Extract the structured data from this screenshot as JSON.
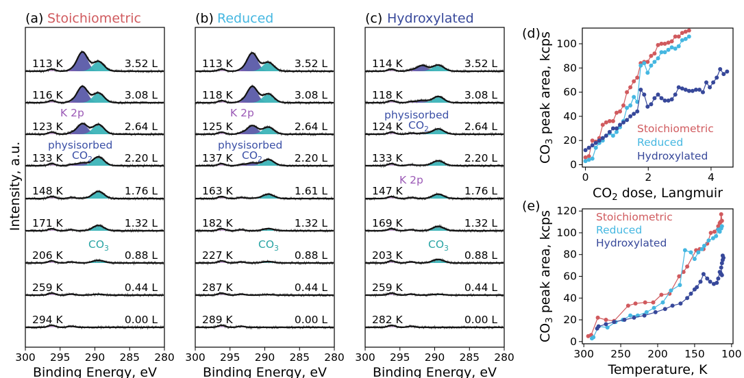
{
  "colors": {
    "stoich": "#d05a5e",
    "reduced": "#45b7e1",
    "hydrox": "#37489a",
    "co2_fill": "#5a5aa8",
    "co3_fill": "#3cb4b8",
    "k2p": "#9b59b6",
    "co2_text": "#3a4fa6",
    "co3_text": "#2aa5a5"
  },
  "shared": {
    "ylabel": "Intensity, a.u.",
    "xlabel": "Binding Energy, eV",
    "xticks": [
      "300",
      "295",
      "290",
      "285",
      "280"
    ],
    "co3_label_main": "CO",
    "co3_label_sub": "3",
    "co2_label_main": "CO",
    "co2_label_sub": "2",
    "k2p_label": "K 2p",
    "physisorbed_label": "physisorbed"
  },
  "panels": [
    {
      "letter": "(a)",
      "title": "Stoichiometric",
      "title_color": "#d05a5e",
      "rows": [
        {
          "temp": "113 K",
          "dose": "3.52 L",
          "co2": 1.0,
          "co3": 0.55
        },
        {
          "temp": "116 K",
          "dose": "3.08 L",
          "co2": 0.85,
          "co3": 0.55
        },
        {
          "temp": "123 K",
          "dose": "2.64 L",
          "co2": 0.55,
          "co3": 0.55
        },
        {
          "temp": "133 K",
          "dose": "2.20 L",
          "co2": 0.15,
          "co3": 0.5
        },
        {
          "temp": "148 K",
          "dose": "1.76 L",
          "co2": 0.02,
          "co3": 0.4
        },
        {
          "temp": "171 K",
          "dose": "1.32 L",
          "co2": 0.0,
          "co3": 0.3
        },
        {
          "temp": "206 K",
          "dose": "0.88 L",
          "co2": 0.0,
          "co3": 0.15
        },
        {
          "temp": "259 K",
          "dose": "0.44 L",
          "co2": 0.0,
          "co3": 0.05
        },
        {
          "temp": "294 K",
          "dose": "0.00 L",
          "co2": 0.0,
          "co3": 0.0
        }
      ]
    },
    {
      "letter": "(b)",
      "title": "Reduced",
      "title_color": "#45b7e1",
      "rows": [
        {
          "temp": "113 K",
          "dose": "3.52 L",
          "co2": 0.95,
          "co3": 0.5
        },
        {
          "temp": "118 K",
          "dose": "3.08 L",
          "co2": 0.85,
          "co3": 0.5
        },
        {
          "temp": "125 K",
          "dose": "2.64 L",
          "co2": 0.45,
          "co3": 0.4
        },
        {
          "temp": "137 K",
          "dose": "2.20 L",
          "co2": 0.15,
          "co3": 0.35
        },
        {
          "temp": "163 K",
          "dose": "1.61 L",
          "co2": 0.02,
          "co3": 0.25
        },
        {
          "temp": "182 K",
          "dose": "1.32 L",
          "co2": 0.0,
          "co3": 0.12
        },
        {
          "temp": "227 K",
          "dose": "0.88 L",
          "co2": 0.0,
          "co3": 0.08
        },
        {
          "temp": "287 K",
          "dose": "0.44 L",
          "co2": 0.0,
          "co3": 0.03
        },
        {
          "temp": "289 K",
          "dose": "0.00 L",
          "co2": 0.0,
          "co3": 0.0
        }
      ]
    },
    {
      "letter": "(c)",
      "title": "Hydroxylated",
      "title_color": "#37489a",
      "rows": [
        {
          "temp": "114 K",
          "dose": "3.52 L",
          "co2": 0.3,
          "co3": 0.35
        },
        {
          "temp": "118 K",
          "dose": "3.08 L",
          "co2": 0.12,
          "co3": 0.35
        },
        {
          "temp": "124 K",
          "dose": "2.64 L",
          "co2": 0.05,
          "co3": 0.3
        },
        {
          "temp": "133 K",
          "dose": "2.20 L",
          "co2": 0.02,
          "co3": 0.28
        },
        {
          "temp": "147 K",
          "dose": "1.76 L",
          "co2": 0.0,
          "co3": 0.25
        },
        {
          "temp": "169 K",
          "dose": "1.32 L",
          "co2": 0.0,
          "co3": 0.25
        },
        {
          "temp": "203 K",
          "dose": "0.88 L",
          "co2": 0.0,
          "co3": 0.2
        },
        {
          "temp": "259 K",
          "dose": "0.44 L",
          "co2": 0.0,
          "co3": 0.05
        },
        {
          "temp": "282 K",
          "dose": "0.00 L",
          "co2": 0.0,
          "co3": 0.0
        }
      ]
    }
  ],
  "chart_data": [
    {
      "type": "line",
      "panel": "(d)",
      "xlabel_main": "CO",
      "xlabel_sub": "2",
      "xlabel_rest": " dose, Langmuir",
      "ylabel_main": "CO",
      "ylabel_sub": "3",
      "ylabel_rest": " peak area, kcps",
      "xlim": [
        -0.1,
        4.7
      ],
      "ylim": [
        -2,
        113
      ],
      "xticks": [
        0,
        2,
        4
      ],
      "yticks": [
        0,
        20,
        40,
        60,
        80,
        100
      ],
      "legend": [
        "Stoichiometric",
        "Reduced",
        "Hydroxylated"
      ],
      "series": [
        {
          "name": "Stoichiometric",
          "color": "#d05a5e",
          "x": [
            0.0,
            0.11,
            0.22,
            0.33,
            0.44,
            0.55,
            0.66,
            0.77,
            0.88,
            0.99,
            1.1,
            1.21,
            1.32,
            1.43,
            1.54,
            1.65,
            1.76,
            1.87,
            1.98,
            2.09,
            2.2,
            2.31,
            2.42,
            2.53,
            2.64,
            2.75,
            2.86,
            2.97,
            3.08,
            3.19,
            3.3
          ],
          "y": [
            6,
            7,
            20,
            19,
            22,
            33,
            35,
            36,
            36,
            43,
            44,
            49,
            60,
            64,
            69,
            72,
            84,
            85,
            85,
            90,
            92,
            99,
            100,
            100,
            101,
            102,
            106,
            106,
            109,
            110,
            111
          ]
        },
        {
          "name": "Reduced",
          "color": "#45b7e1",
          "x": [
            0.0,
            0.11,
            0.22,
            0.33,
            0.44,
            0.55,
            0.66,
            0.77,
            0.88,
            0.99,
            1.1,
            1.21,
            1.32,
            1.43,
            1.54,
            1.65,
            1.76,
            1.87,
            1.98,
            2.09,
            2.2,
            2.31,
            2.42,
            2.53,
            2.64,
            2.75,
            2.86,
            2.97,
            3.08,
            3.19,
            3.3
          ],
          "y": [
            3,
            4,
            5,
            14,
            18,
            20,
            24,
            26,
            24,
            27,
            31,
            36,
            47,
            49,
            56,
            52,
            82,
            84,
            76,
            82,
            85,
            88,
            93,
            93,
            95,
            97,
            96,
            98,
            103,
            104,
            106
          ]
        },
        {
          "name": "Hydroxylated",
          "color": "#37489a",
          "x": [
            0.0,
            0.11,
            0.22,
            0.33,
            0.44,
            0.55,
            0.66,
            0.77,
            0.88,
            0.99,
            1.1,
            1.21,
            1.32,
            1.43,
            1.54,
            1.65,
            1.76,
            1.87,
            1.98,
            2.09,
            2.2,
            2.31,
            2.42,
            2.53,
            2.64,
            2.75,
            2.86,
            2.97,
            3.08,
            3.19,
            3.3,
            3.41,
            3.52,
            3.63,
            3.74,
            3.85,
            3.96,
            4.07,
            4.18,
            4.29,
            4.4,
            4.51
          ],
          "y": [
            12,
            14,
            16,
            18,
            20,
            22,
            24,
            27,
            30,
            30,
            33,
            35,
            37,
            40,
            42,
            44,
            62,
            58,
            48,
            50,
            55,
            58,
            55,
            53,
            53,
            54,
            58,
            64,
            63,
            62,
            61,
            61,
            62,
            62,
            60,
            68,
            64,
            68,
            72,
            79,
            75,
            77
          ]
        }
      ]
    },
    {
      "type": "line",
      "panel": "(e)",
      "xlabel_main": "Temperature, K",
      "xlabel_sub": "",
      "xlabel_rest": "",
      "ylabel_main": "CO",
      "ylabel_sub": "3",
      "ylabel_rest": " peak area, kcps",
      "xlim": [
        302,
        98
      ],
      "ylim": [
        -2,
        122
      ],
      "xticks": [
        300,
        250,
        200,
        150,
        100
      ],
      "yticks": [
        0,
        20,
        40,
        60,
        80,
        100,
        120
      ],
      "legend": [
        "Stoichiometric",
        "Reduced",
        "Hydroxylated"
      ],
      "series": [
        {
          "name": "Stoichiometric",
          "color": "#d05a5e",
          "x": [
            294,
            290,
            281,
            270,
            259,
            240,
            230,
            217,
            206,
            195,
            184,
            171,
            165,
            160,
            148,
            143,
            138,
            133,
            128,
            123,
            118,
            116,
            115,
            114,
            113
          ],
          "y": [
            5,
            6,
            22,
            20,
            19,
            33,
            35,
            36,
            36,
            43,
            44,
            60,
            64,
            69,
            84,
            85,
            85,
            90,
            100,
            101,
            106,
            109,
            110,
            117,
            111
          ]
        },
        {
          "name": "Reduced",
          "color": "#45b7e1",
          "x": [
            289,
            287,
            280,
            268,
            257,
            247,
            237,
            227,
            215,
            205,
            193,
            182,
            170,
            163,
            155,
            150,
            145,
            140,
            137,
            131,
            125,
            121,
            118,
            116,
            114,
            113
          ],
          "y": [
            3,
            4,
            14,
            13,
            18,
            20,
            24,
            24,
            27,
            31,
            36,
            47,
            52,
            84,
            82,
            76,
            82,
            85,
            88,
            93,
            95,
            97,
            103,
            101,
            104,
            106
          ]
        },
        {
          "name": "Hydroxylated",
          "color": "#37489a",
          "x": [
            282,
            280,
            270,
            259,
            245,
            232,
            218,
            203,
            190,
            180,
            169,
            160,
            155,
            150,
            147,
            142,
            138,
            133,
            129,
            124,
            120,
            118,
            116,
            115,
            114,
            113,
            114,
            113,
            112,
            112,
            111
          ],
          "y": [
            12,
            14,
            16,
            18,
            20,
            22,
            24,
            27,
            30,
            33,
            35,
            40,
            44,
            48,
            50,
            55,
            62,
            58,
            55,
            53,
            54,
            58,
            64,
            63,
            62,
            61,
            68,
            72,
            79,
            75,
            77
          ]
        }
      ]
    }
  ]
}
